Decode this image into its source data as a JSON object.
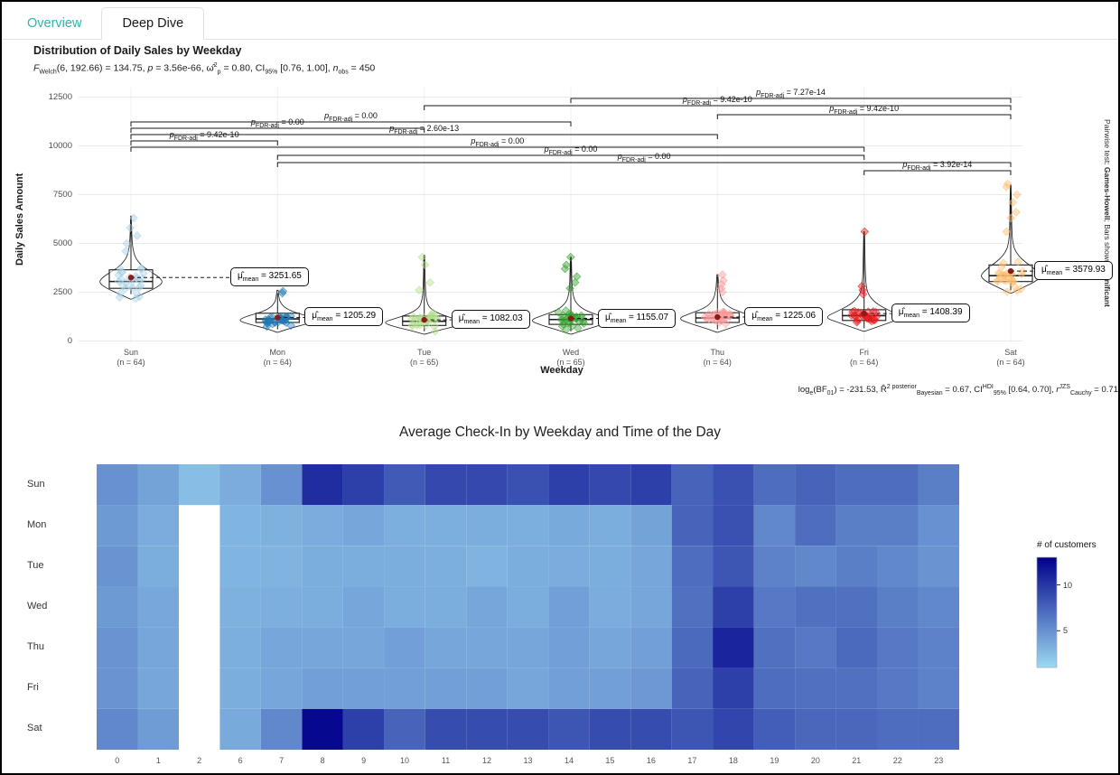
{
  "tabs": [
    {
      "label": "Overview"
    },
    {
      "label": "Deep Dive"
    }
  ],
  "accent_color": "#2cb5aa",
  "chart_data": [
    {
      "type": "violin",
      "title": "Distribution of Daily Sales by Weekday",
      "subtitle": "*F*_{Welch}(6, 192.66) = 134.75, *p* = 3.56e-66, ω̂^{2}_{p} = 0.80, CI_{95%} [0.76, 1.00], *n*_{obs} = 450",
      "caption": "log_{e}(BF_{01}) = -231.53, R̂^{2 posterior}_{Bayesian} = 0.67, CI^{HDI}_{95%} [0.64, 0.70], *r*^{JZS}_{Cauchy} = 0.71",
      "right_label": "Pairwise test: **Games-Howell**; Bars shown: **significant**",
      "xlabel": "Weekday",
      "ylabel": "Daily Sales Amount",
      "ylim": [
        0,
        12500
      ],
      "yticks": [
        0,
        2500,
        5000,
        7500,
        10000,
        12500
      ],
      "mean_label_prefix": "μ̂_{mean} = ",
      "p_label_prefix": "*p*_{FDR-adj} = ",
      "mean_dot_color": "#8b1a1a",
      "groups": [
        {
          "day": "Sun",
          "n": 64,
          "color": "#a6cee3",
          "mean": 3251.65,
          "median": 3050,
          "q1": 2700,
          "q3": 3650,
          "whisker_low": 2400,
          "whisker_high": 6400,
          "max_halfwidth": 36,
          "label_dx": 110,
          "outliers": [
            4600,
            5000,
            5400,
            5800,
            6300
          ],
          "profile": [
            [
              2150,
              0.02
            ],
            [
              2400,
              0.35
            ],
            [
              2700,
              0.75
            ],
            [
              3000,
              1.0
            ],
            [
              3300,
              0.85
            ],
            [
              3600,
              0.55
            ],
            [
              3900,
              0.3
            ],
            [
              4300,
              0.12
            ],
            [
              4800,
              0.05
            ],
            [
              5300,
              0.03
            ],
            [
              5800,
              0.02
            ],
            [
              6400,
              0.01
            ]
          ]
        },
        {
          "day": "Mon",
          "n": 64,
          "color": "#1f78b4",
          "mean": 1205.29,
          "median": 1130,
          "q1": 950,
          "q3": 1420,
          "whisker_low": 600,
          "whisker_high": 2450,
          "max_halfwidth": 44,
          "label_dx": 30,
          "outliers": [
            2450,
            2550
          ],
          "profile": [
            [
              450,
              0.02
            ],
            [
              650,
              0.3
            ],
            [
              850,
              0.7
            ],
            [
              1050,
              1.0
            ],
            [
              1250,
              0.8
            ],
            [
              1450,
              0.45
            ],
            [
              1700,
              0.18
            ],
            [
              2000,
              0.06
            ],
            [
              2300,
              0.03
            ],
            [
              2600,
              0.015
            ]
          ]
        },
        {
          "day": "Tue",
          "n": 65,
          "color": "#b2df8a",
          "mean": 1082.03,
          "median": 1010,
          "q1": 800,
          "q3": 1280,
          "whisker_low": 500,
          "whisker_high": 4350,
          "max_halfwidth": 46,
          "label_dx": 30,
          "outliers": [
            2600,
            3000,
            3900,
            4300
          ],
          "profile": [
            [
              350,
              0.02
            ],
            [
              550,
              0.35
            ],
            [
              750,
              0.75
            ],
            [
              950,
              1.0
            ],
            [
              1150,
              0.7
            ],
            [
              1400,
              0.35
            ],
            [
              1700,
              0.12
            ],
            [
              2100,
              0.05
            ],
            [
              2600,
              0.03
            ],
            [
              3200,
              0.02
            ],
            [
              3800,
              0.015
            ],
            [
              4400,
              0.01
            ]
          ]
        },
        {
          "day": "Wed",
          "n": 65,
          "color": "#33a02c",
          "mean": 1155.07,
          "median": 1100,
          "q1": 850,
          "q3": 1350,
          "whisker_low": 500,
          "whisker_high": 4300,
          "max_halfwidth": 46,
          "label_dx": 30,
          "outliers": [
            2700,
            3000,
            3300,
            3700,
            3900,
            4300
          ],
          "profile": [
            [
              350,
              0.02
            ],
            [
              550,
              0.3
            ],
            [
              800,
              0.7
            ],
            [
              1050,
              1.0
            ],
            [
              1300,
              0.7
            ],
            [
              1600,
              0.3
            ],
            [
              2000,
              0.1
            ],
            [
              2500,
              0.04
            ],
            [
              3100,
              0.025
            ],
            [
              3700,
              0.02
            ],
            [
              4300,
              0.01
            ]
          ]
        },
        {
          "day": "Thu",
          "n": 64,
          "color": "#fb9a99",
          "mean": 1225.06,
          "median": 1180,
          "q1": 950,
          "q3": 1450,
          "whisker_low": 600,
          "whisker_high": 3300,
          "max_halfwidth": 44,
          "label_dx": 30,
          "outliers": [
            2500,
            2700,
            2900,
            3100,
            3400
          ],
          "profile": [
            [
              450,
              0.02
            ],
            [
              650,
              0.3
            ],
            [
              900,
              0.7
            ],
            [
              1150,
              1.0
            ],
            [
              1400,
              0.7
            ],
            [
              1700,
              0.3
            ],
            [
              2100,
              0.1
            ],
            [
              2600,
              0.04
            ],
            [
              3000,
              0.025
            ],
            [
              3400,
              0.012
            ]
          ]
        },
        {
          "day": "Fri",
          "n": 64,
          "color": "#e31a1c",
          "mean": 1408.39,
          "median": 1300,
          "q1": 1050,
          "q3": 1600,
          "whisker_low": 650,
          "whisker_high": 5500,
          "max_halfwidth": 44,
          "label_dx": 30,
          "outliers": [
            2400,
            2600,
            2800,
            5600
          ],
          "profile": [
            [
              500,
              0.02
            ],
            [
              700,
              0.3
            ],
            [
              950,
              0.65
            ],
            [
              1200,
              1.0
            ],
            [
              1500,
              0.7
            ],
            [
              1850,
              0.35
            ],
            [
              2300,
              0.12
            ],
            [
              2800,
              0.05
            ],
            [
              3500,
              0.03
            ],
            [
              4500,
              0.02
            ],
            [
              5600,
              0.01
            ]
          ]
        },
        {
          "day": "Sat",
          "n": 64,
          "color": "#fdbf6f",
          "mean": 3579.93,
          "median": 3350,
          "q1": 3050,
          "q3": 3900,
          "whisker_low": 2600,
          "whisker_high": 7900,
          "max_halfwidth": 34,
          "label_dx": 26,
          "outliers": [
            5600,
            6300,
            6600,
            7100,
            7500,
            7900,
            8050
          ],
          "profile": [
            [
              2450,
              0.02
            ],
            [
              2700,
              0.35
            ],
            [
              3000,
              0.75
            ],
            [
              3300,
              1.0
            ],
            [
              3600,
              0.85
            ],
            [
              3900,
              0.6
            ],
            [
              4200,
              0.35
            ],
            [
              4600,
              0.15
            ],
            [
              5000,
              0.07
            ],
            [
              5500,
              0.04
            ],
            [
              6200,
              0.03
            ],
            [
              6800,
              0.025
            ],
            [
              7400,
              0.02
            ],
            [
              8000,
              0.01
            ]
          ]
        }
      ],
      "comparisons": [
        {
          "from": "Wed",
          "to": "Sat",
          "p": "7.27e-14",
          "level": 0
        },
        {
          "from": "Tue",
          "to": "Sat",
          "p": "9.42e-10",
          "level": 1
        },
        {
          "from": "Thu",
          "to": "Sat",
          "p": "9.42e-10",
          "level": 2
        },
        {
          "from": "Sun",
          "to": "Wed",
          "p": "0.00",
          "level": 3
        },
        {
          "from": "Sun",
          "to": "Tue",
          "p": "0.00",
          "level": 4
        },
        {
          "from": "Sun",
          "to": "Thu",
          "p": "2.60e-13",
          "level": 5
        },
        {
          "from": "Sun",
          "to": "Mon",
          "p": "9.42e-10",
          "level": 6
        },
        {
          "from": "Sun",
          "to": "Fri",
          "p": "0.00",
          "level": 7
        },
        {
          "from": "Mon",
          "to": "Fri",
          "p": "0.00",
          "level": 8
        },
        {
          "from": "Mon",
          "to": "Sat",
          "p": "0.00",
          "level": 9
        },
        {
          "from": "Fri",
          "to": "Sat",
          "p": "3.92e-14",
          "level": 10
        }
      ]
    },
    {
      "type": "heatmap",
      "title": "Average Check-In by Weekday and Time of the Day",
      "legend_title": "# of customers",
      "legend_ticks": [
        10,
        5
      ],
      "rows": [
        "Sun",
        "Mon",
        "Tue",
        "Wed",
        "Thu",
        "Fri",
        "Sat"
      ],
      "cols": [
        "0",
        "1",
        "2",
        "6",
        "7",
        "8",
        "9",
        "10",
        "11",
        "12",
        "13",
        "14",
        "15",
        "16",
        "17",
        "18",
        "19",
        "20",
        "21",
        "22",
        "23"
      ],
      "values": [
        [
          5,
          4,
          2.5,
          3.5,
          5,
          10.5,
          9.5,
          8,
          9,
          9,
          8.5,
          9.5,
          9,
          9.5,
          7.5,
          8.5,
          7,
          7.5,
          7,
          7,
          6
        ],
        [
          4.5,
          3.5,
          null,
          3,
          3.2,
          3.5,
          3.8,
          3.3,
          3.3,
          3.4,
          3.3,
          3.6,
          3.4,
          4,
          7.5,
          8.5,
          5.5,
          7,
          6,
          6,
          5
        ],
        [
          4.8,
          3.4,
          null,
          3,
          3.1,
          3.4,
          3.4,
          3.4,
          3.3,
          3.1,
          3.4,
          3.5,
          3.4,
          3.8,
          7,
          8.3,
          5.8,
          5.5,
          6,
          5.5,
          4.8
        ],
        [
          4.5,
          3.7,
          null,
          3.2,
          3.3,
          3.4,
          3.8,
          3.4,
          3.4,
          3.8,
          3.4,
          4.2,
          3.5,
          3.8,
          6.8,
          9.5,
          6.3,
          6.8,
          6.8,
          6,
          5.5
        ],
        [
          4.8,
          3.8,
          null,
          3.3,
          3.8,
          3.8,
          3.8,
          4.2,
          3.8,
          3.8,
          3.8,
          4.2,
          3.8,
          4.2,
          7.2,
          11,
          6.8,
          6.3,
          7.2,
          6.3,
          5.8
        ],
        [
          4.8,
          3.8,
          null,
          3.4,
          3.8,
          4.2,
          4.2,
          4.2,
          4.2,
          4.2,
          3.8,
          4.2,
          4.2,
          4.6,
          7.5,
          9.5,
          7,
          6.8,
          6.8,
          6.3,
          5.8
        ],
        [
          5.5,
          4.4,
          null,
          3.6,
          5.5,
          12.5,
          9.5,
          7.5,
          8.8,
          8.8,
          8.8,
          8.3,
          8.8,
          8.8,
          8.3,
          9.2,
          7.8,
          7.3,
          7.3,
          7,
          7
        ]
      ],
      "scale": {
        "min": 1,
        "max": 13,
        "low": "#9bd9f2",
        "high": "#00008b"
      }
    }
  ]
}
